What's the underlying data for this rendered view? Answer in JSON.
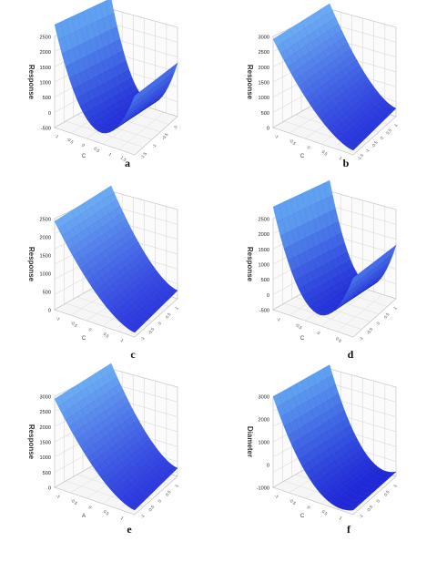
{
  "figure": {
    "panels": [
      {
        "letter": "a",
        "z_label": "Response",
        "z_ticks": [
          "2500",
          "2000",
          "1500",
          "1000",
          "500",
          "0",
          "-500"
        ],
        "x_ticks": [
          "-1",
          "-0.5",
          "0",
          "0.5",
          "1",
          "1.5"
        ],
        "x_label": "C",
        "y_ticks": [
          "-1.5",
          "-1",
          "-0.5",
          "0"
        ],
        "surface": "bowl",
        "colors": {
          "light": "#5fa0f0",
          "dark": "#1414d2"
        }
      },
      {
        "letter": "b",
        "z_label": "Response",
        "z_ticks": [
          "3000",
          "2500",
          "2000",
          "1500",
          "1000",
          "500",
          "0"
        ],
        "x_ticks": [
          "-1",
          "-0.5",
          "0",
          "0.5",
          "1"
        ],
        "x_label": "C",
        "y_ticks": [
          "-1.5",
          "-1",
          "-0.5",
          "0",
          "0.5",
          "1"
        ],
        "surface": "slope",
        "colors": {
          "light": "#6aaaf2",
          "dark": "#1a1ad6"
        }
      },
      {
        "letter": "c",
        "z_label": "Response",
        "z_ticks": [
          "2500",
          "2000",
          "1500",
          "1000",
          "500",
          "0"
        ],
        "x_ticks": [
          "-1",
          "-0.5",
          "0",
          "0.5",
          "1"
        ],
        "x_label": "C",
        "y_ticks": [
          "-1",
          "-0.5",
          "0",
          "0.5",
          "1"
        ],
        "surface": "slope",
        "colors": {
          "light": "#6aaaf2",
          "dark": "#1e1ed8"
        }
      },
      {
        "letter": "d",
        "z_label": "Response",
        "z_ticks": [
          "2500",
          "2000",
          "1500",
          "1000",
          "500",
          "0",
          "-500"
        ],
        "x_ticks": [
          "-1",
          "-0.5",
          "0",
          "0.5"
        ],
        "x_label": "C",
        "y_ticks": [
          "-1",
          "-0.5",
          "0",
          "0.5",
          "1"
        ],
        "surface": "bowl",
        "colors": {
          "light": "#5fa0f0",
          "dark": "#1414d2"
        }
      },
      {
        "letter": "e",
        "z_label": "Response",
        "z_ticks": [
          "3000",
          "2500",
          "2000",
          "1500",
          "1000",
          "500",
          "0"
        ],
        "x_ticks": [
          "-1",
          "-0.5",
          "0",
          "0.5",
          "1"
        ],
        "x_label": "A",
        "y_ticks": [
          "-1",
          "-0.5",
          "0",
          "0.5",
          "1"
        ],
        "surface": "slope",
        "colors": {
          "light": "#6aaaf2",
          "dark": "#1e1ed8"
        }
      },
      {
        "letter": "f",
        "z_label": "Diameter",
        "z_ticks": [
          "3000",
          "2000",
          "1000",
          "0",
          "-1000"
        ],
        "x_ticks": [
          "-1",
          "-0.5",
          "0",
          "0.5",
          "1"
        ],
        "x_label": "C",
        "y_ticks": [
          "-1",
          "-0.5",
          "0",
          "0.5",
          "1"
        ],
        "surface": "trough",
        "colors": {
          "light": "#5fa0f0",
          "dark": "#1414d2"
        }
      }
    ]
  }
}
